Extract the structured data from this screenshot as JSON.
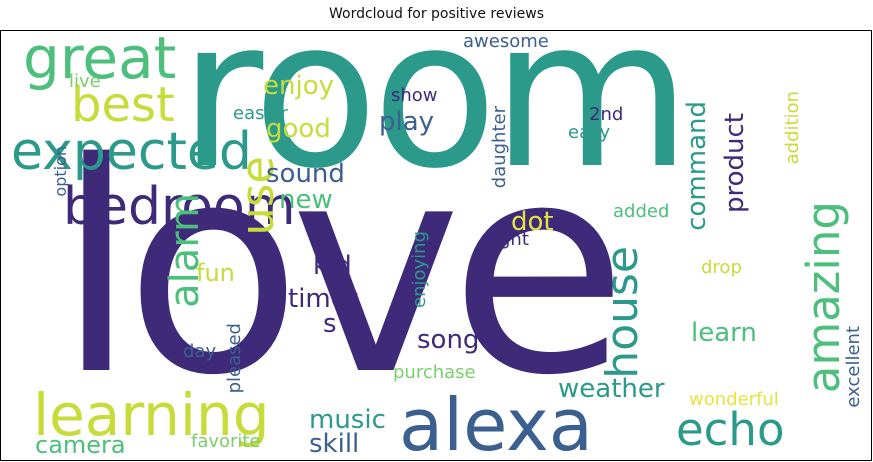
{
  "figure": {
    "title": "Wordcloud for positive reviews"
  },
  "words": {
    "love": "love",
    "room": "room",
    "alexa": "alexa",
    "learning": "learning",
    "great": "great",
    "best": "best",
    "expected": "expected",
    "bedroom": "bedroom",
    "use": "use",
    "amazing": "amazing",
    "house": "house",
    "echo": "echo",
    "alarm": "alarm",
    "timer": "timer",
    "kid": "kid",
    "enjoy": "enjoy",
    "good": "good",
    "sound": "sound",
    "new": "new",
    "play": "play",
    "dot": "dot",
    "song": "song",
    "weather": "weather",
    "music": "music",
    "skill": "skill",
    "camera": "camera",
    "favorite": "favorite",
    "learn": "learn",
    "product": "product",
    "command": "command",
    "awesome": "awesome",
    "show": "show",
    "easier": "easier",
    "live": "live",
    "option": "option",
    "fun": "fun",
    "s": "s",
    "daughter": "daughter",
    "easy": "easy",
    "2nd": "2nd",
    "addition": "addition",
    "added": "added",
    "light": "light",
    "drop": "drop",
    "enjoying": "enjoying",
    "pleased": "pleased",
    "day": "day",
    "purchase": "purchase",
    "wonderful": "wonderful",
    "excellent": "excellent"
  },
  "colors": {
    "dark_purple": "#3f2a7a",
    "blue": "#3b5f8e",
    "teal": "#2b9a8b",
    "green": "#4cbf7c",
    "light_green": "#7bcf6a",
    "yellow_green": "#c6dc3a",
    "yellow": "#e5e340"
  }
}
